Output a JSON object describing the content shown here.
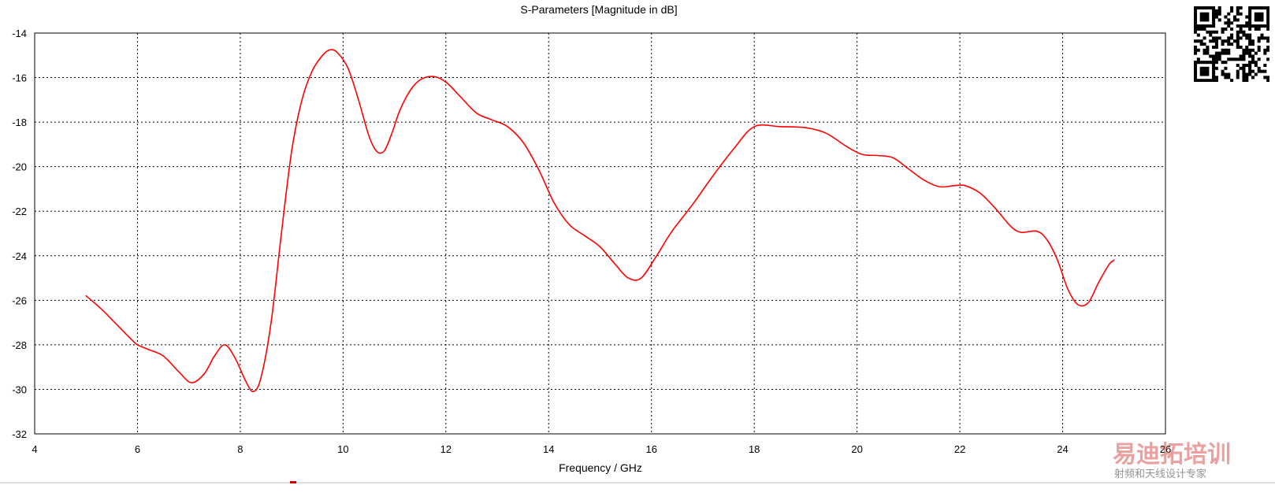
{
  "chart_data": {
    "type": "line",
    "title": "S-Parameters [Magnitude in dB]",
    "xlabel": "Frequency / GHz",
    "ylabel": "",
    "xlim": [
      4,
      26
    ],
    "ylim": [
      -32,
      -14
    ],
    "xticks": [
      4,
      6,
      8,
      10,
      12,
      14,
      16,
      18,
      20,
      22,
      24,
      26
    ],
    "yticks": [
      -14,
      -16,
      -18,
      -20,
      -22,
      -24,
      -26,
      -28,
      -30,
      -32
    ],
    "grid": true,
    "grid_style": "dotted",
    "legend": "none",
    "series": [
      {
        "color": "#ff0000",
        "x": [
          5.0,
          5.3,
          5.6,
          5.9,
          6.0,
          6.2,
          6.5,
          6.8,
          7.05,
          7.3,
          7.5,
          7.7,
          7.9,
          8.1,
          8.25,
          8.4,
          8.6,
          8.8,
          9.0,
          9.2,
          9.4,
          9.6,
          9.75,
          9.9,
          10.1,
          10.3,
          10.5,
          10.65,
          10.8,
          10.95,
          11.1,
          11.3,
          11.5,
          11.75,
          12.0,
          12.3,
          12.6,
          12.9,
          13.2,
          13.5,
          13.8,
          14.1,
          14.4,
          14.7,
          15.0,
          15.3,
          15.55,
          15.8,
          16.1,
          16.4,
          16.8,
          17.2,
          17.6,
          18.0,
          18.5,
          19.0,
          19.4,
          19.8,
          20.1,
          20.4,
          20.7,
          21.0,
          21.3,
          21.6,
          21.9,
          22.1,
          22.4,
          22.7,
          23.0,
          23.2,
          23.5,
          23.7,
          23.9,
          24.1,
          24.3,
          24.5,
          24.7,
          24.9,
          25.0
        ],
        "y": [
          -25.8,
          -26.4,
          -27.1,
          -27.8,
          -28.0,
          -28.2,
          -28.5,
          -29.2,
          -29.7,
          -29.3,
          -28.5,
          -28.0,
          -28.6,
          -29.6,
          -30.1,
          -29.5,
          -27.0,
          -23.0,
          -19.3,
          -17.0,
          -15.7,
          -15.0,
          -14.75,
          -14.9,
          -15.6,
          -17.0,
          -18.6,
          -19.3,
          -19.3,
          -18.5,
          -17.5,
          -16.6,
          -16.1,
          -15.95,
          -16.2,
          -16.9,
          -17.6,
          -17.9,
          -18.2,
          -18.9,
          -20.1,
          -21.6,
          -22.6,
          -23.1,
          -23.6,
          -24.4,
          -25.0,
          -25.0,
          -24.0,
          -22.9,
          -21.7,
          -20.4,
          -19.2,
          -18.2,
          -18.2,
          -18.25,
          -18.5,
          -19.1,
          -19.45,
          -19.5,
          -19.6,
          -20.1,
          -20.6,
          -20.9,
          -20.85,
          -20.85,
          -21.2,
          -21.9,
          -22.7,
          -22.95,
          -22.9,
          -23.3,
          -24.2,
          -25.5,
          -26.2,
          -26.1,
          -25.2,
          -24.4,
          -24.2
        ]
      }
    ]
  },
  "watermark": {
    "brand": "易迪拓培训",
    "tagline": "射频和天线设计专家"
  }
}
